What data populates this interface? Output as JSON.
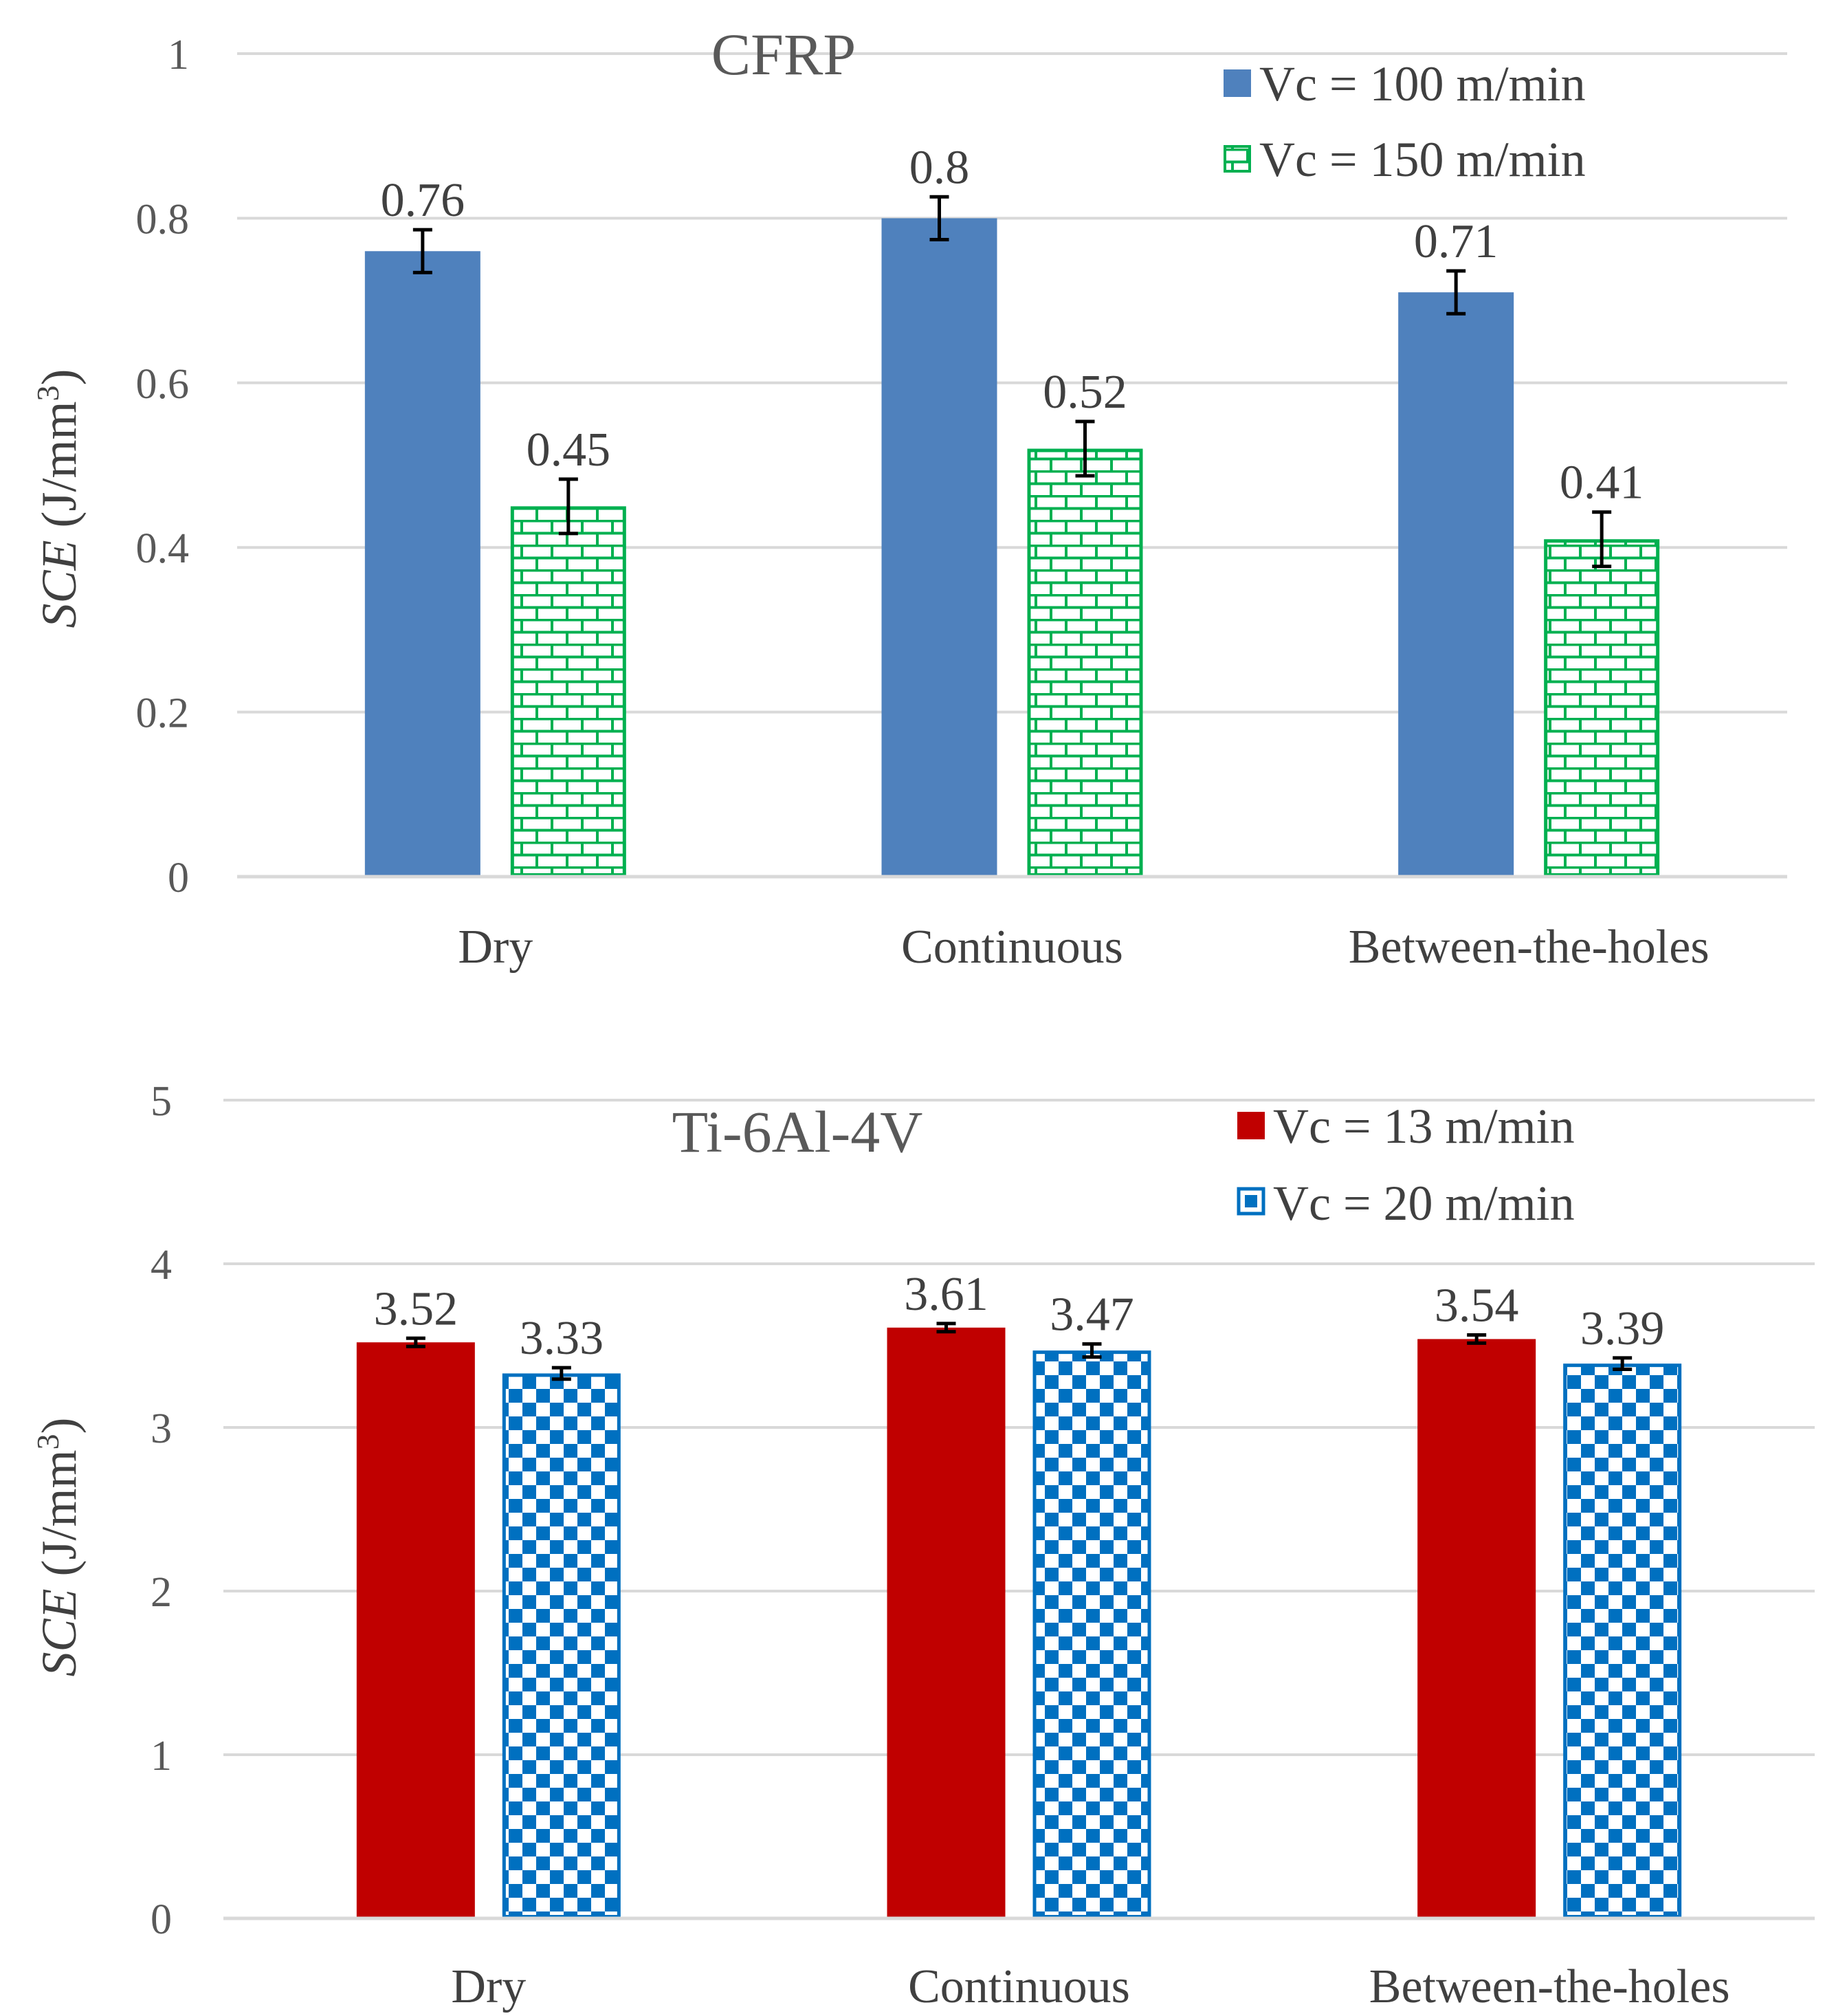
{
  "chart_data": [
    {
      "type": "bar",
      "title": "CFRP",
      "ylabel": "SCE (J/mm3)",
      "ylabel_parts": {
        "italic": "SCE",
        "unit": " (J/mm",
        "sup": "3",
        "close": ")"
      },
      "ylim": [
        0,
        1
      ],
      "yticks": [
        0,
        0.2,
        0.4,
        0.6,
        0.8,
        1
      ],
      "ytick_labels": [
        "0",
        "0.2",
        "0.4",
        "0.6",
        "0.8",
        "1"
      ],
      "grid": true,
      "legend_position": "top-right",
      "categories": [
        "Dry",
        "Continuous",
        "Between-the-holes"
      ],
      "series": [
        {
          "name": "Vc = 100 m/min",
          "values": [
            0.76,
            0.8,
            0.71
          ],
          "labels": [
            "0.76",
            "0.8",
            "0.71"
          ],
          "errors": [
            0.026,
            0.026,
            0.026
          ],
          "color": "#4f81bd",
          "pattern": "solid"
        },
        {
          "name": "Vc = 150 m/min",
          "values": [
            0.45,
            0.52,
            0.41
          ],
          "labels": [
            "0.45",
            "0.52",
            "0.41"
          ],
          "errors": [
            0.033,
            0.033,
            0.033
          ],
          "color": "#00b050",
          "pattern": "brick"
        }
      ]
    },
    {
      "type": "bar",
      "title": "Ti-6Al-4V",
      "ylabel": "SCE (J/mm3)",
      "ylabel_parts": {
        "italic": "SCE",
        "unit": " (J/mm",
        "sup": "3",
        "close": ")"
      },
      "ylim": [
        0,
        5
      ],
      "yticks": [
        0,
        1,
        2,
        3,
        4,
        5
      ],
      "ytick_labels": [
        "0",
        "1",
        "2",
        "3",
        "4",
        "5"
      ],
      "grid": true,
      "legend_position": "top-right",
      "categories": [
        "Dry",
        "Continuous",
        "Between-the-holes"
      ],
      "series": [
        {
          "name": "Vc = 13 m/min",
          "values": [
            3.52,
            3.61,
            3.54
          ],
          "labels": [
            "3.52",
            "3.61",
            "3.54"
          ],
          "errors": [
            0.025,
            0.025,
            0.025
          ],
          "color": "#c00000",
          "pattern": "solid"
        },
        {
          "name": "Vc = 20 m/min",
          "values": [
            3.33,
            3.47,
            3.39
          ],
          "labels": [
            "3.33",
            "3.47",
            "3.39"
          ],
          "errors": [
            0.035,
            0.04,
            0.035
          ],
          "color": "#0070c0",
          "pattern": "checker"
        }
      ]
    }
  ]
}
